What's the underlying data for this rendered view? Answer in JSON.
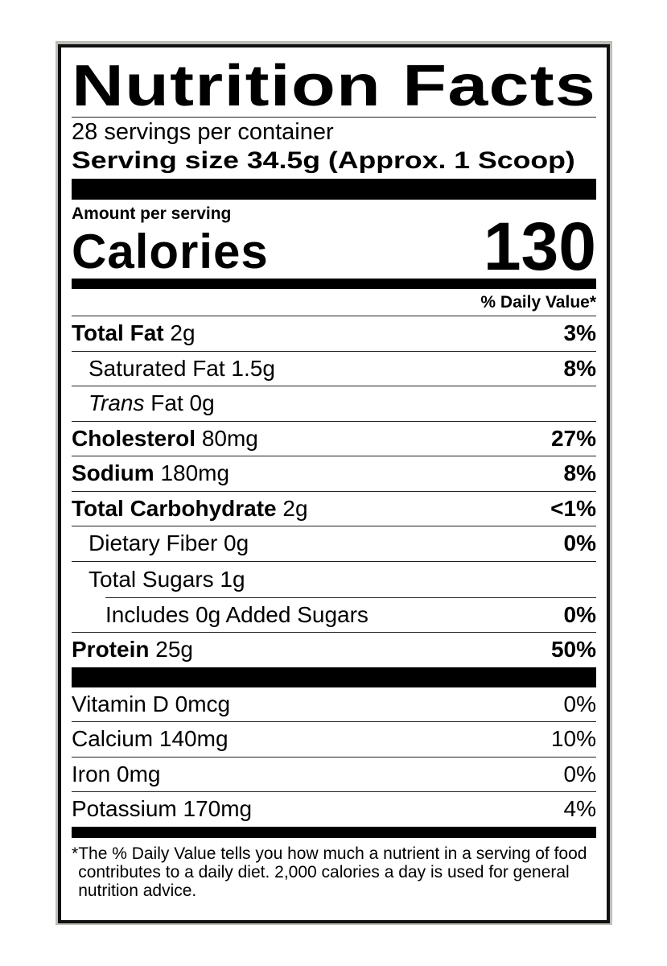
{
  "title": "Nutrition Facts",
  "servings_per_container": "28 servings per container",
  "serving_size": "Serving size 34.5g (Approx. 1 Scoop)",
  "amount_per_serving": "Amount per serving",
  "calories_label": "Calories",
  "calories_value": "130",
  "daily_value_header": "% Daily Value*",
  "nutrients": [
    {
      "name": "Total Fat",
      "amount": "2g",
      "dv": "3%"
    },
    {
      "name": "Saturated Fat 1.5g",
      "dv": "8%"
    },
    {
      "name_italic": "Trans",
      "name": "Fat 0g",
      "dv": ""
    },
    {
      "name": "Cholesterol",
      "amount": "80mg",
      "dv": "27%"
    },
    {
      "name": "Sodium",
      "amount": "180mg",
      "dv": "8%"
    },
    {
      "name": "Total Carbohydrate",
      "amount": "2g",
      "dv": "<1%"
    },
    {
      "name": "Dietary Fiber 0g",
      "dv": "0%"
    },
    {
      "name": "Total Sugars 1g",
      "dv": ""
    },
    {
      "name": "Includes 0g Added Sugars",
      "dv": "0%"
    },
    {
      "name": "Protein",
      "amount": "25g",
      "dv": "50%"
    }
  ],
  "vitamins": [
    {
      "name": "Vitamin D 0mcg",
      "dv": "0%"
    },
    {
      "name": "Calcium 140mg",
      "dv": "10%"
    },
    {
      "name": "Iron 0mg",
      "dv": "0%"
    },
    {
      "name": "Potassium 170mg",
      "dv": "4%"
    }
  ],
  "footnote_star": "*",
  "footnote": "The % Daily Value tells you how much a nutrient in a serving of food contributes to a daily diet. 2,000 calories a day is used for general nutrition advice."
}
